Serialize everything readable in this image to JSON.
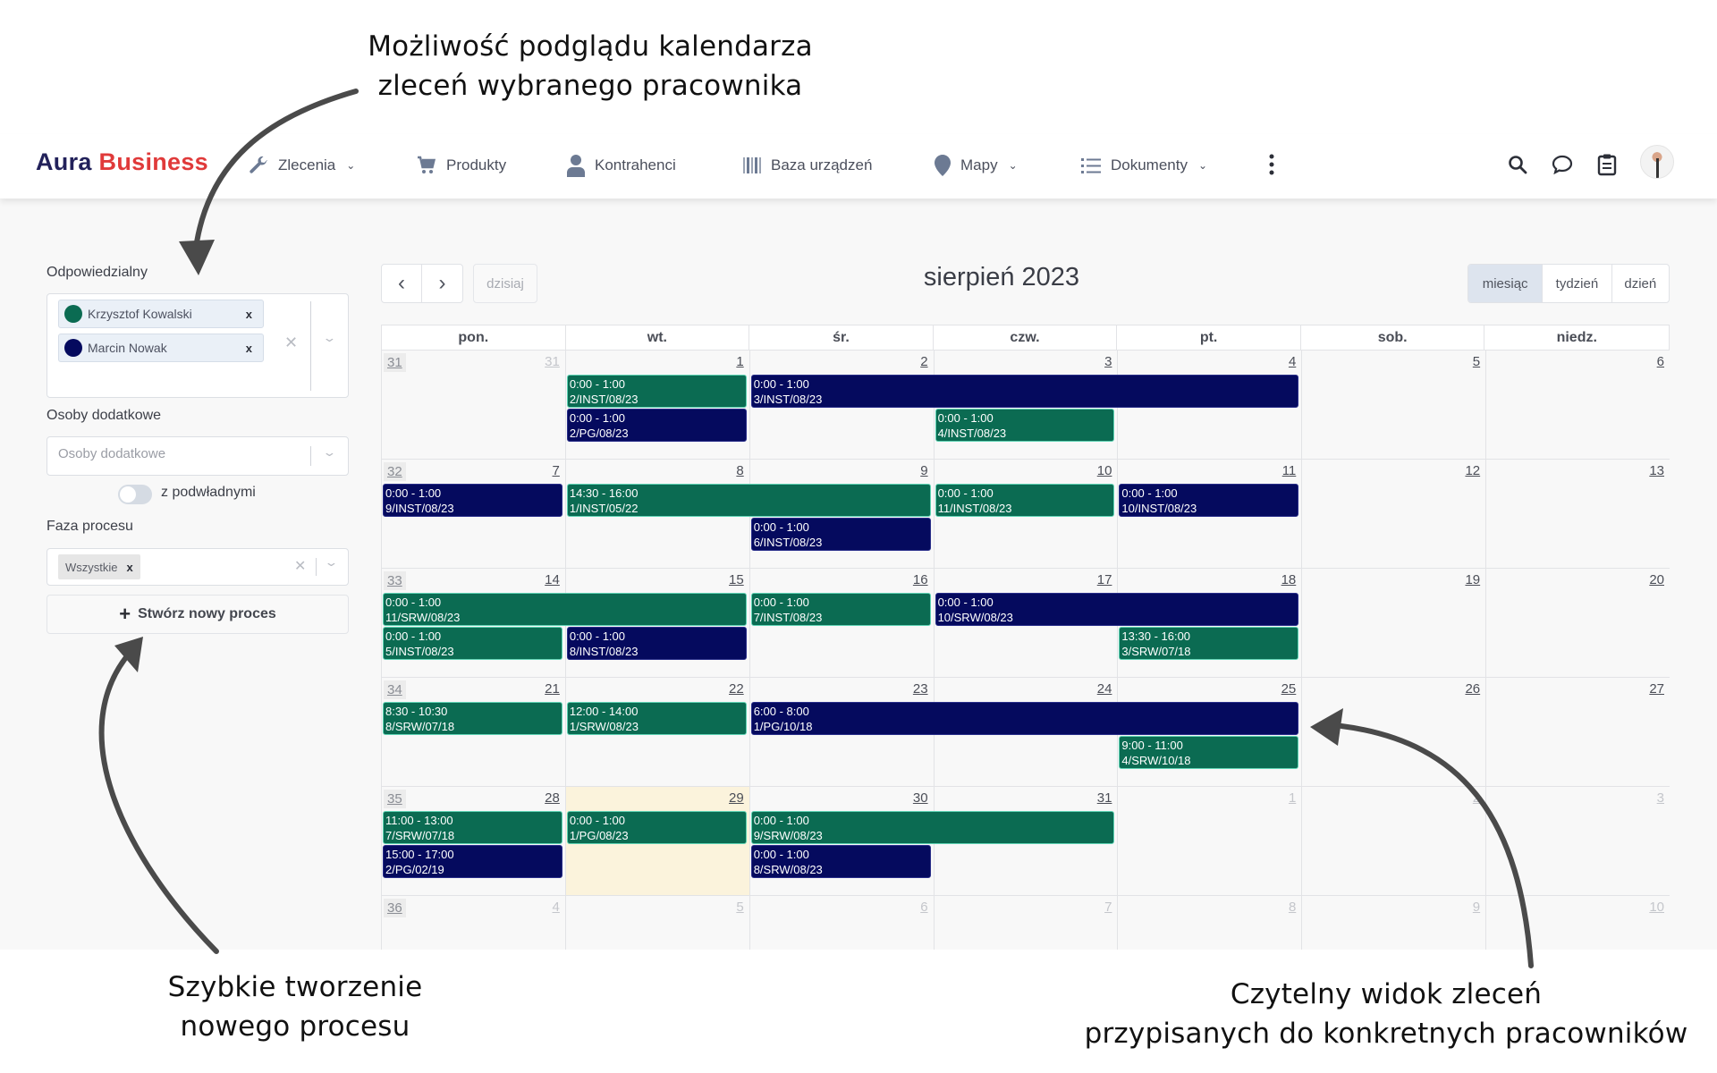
{
  "annotations": {
    "top": [
      "Możliwość podglądu kalendarza",
      "zleceń wybranego pracownika"
    ],
    "bottom_left": [
      "Szybkie tworzenie",
      "nowego procesu"
    ],
    "bottom_right": [
      "Czytelny widok zleceń",
      "przypisanych do konkretnych pracowników"
    ]
  },
  "navbar": {
    "logo_part1": "Aura",
    "logo_part2": "Business",
    "items": [
      {
        "label": "Zlecenia",
        "icon": "wrench-icon",
        "dropdown": true
      },
      {
        "label": "Produkty",
        "icon": "cart-icon",
        "dropdown": false
      },
      {
        "label": "Kontrahenci",
        "icon": "user-icon",
        "dropdown": false
      },
      {
        "label": "Baza urządzeń",
        "icon": "barcode-icon",
        "dropdown": false
      },
      {
        "label": "Mapy",
        "icon": "map-pin-icon",
        "dropdown": true
      },
      {
        "label": "Dokumenty",
        "icon": "list-icon",
        "dropdown": true
      }
    ],
    "more_icon": "more-vertical-icon",
    "right_icons": [
      "search-icon",
      "chat-icon",
      "clipboard-icon",
      "avatar"
    ],
    "chevron": "⌄"
  },
  "sidebar": {
    "responsible": {
      "label": "Odpowiedzialny",
      "selected": [
        {
          "name": "Krzysztof Kowalski",
          "color": "#0b6b52"
        },
        {
          "name": "Marcin Nowak",
          "color": "#050a5e"
        }
      ],
      "remove": "x",
      "clear": "✕",
      "chevron": "⌄"
    },
    "additional": {
      "label": "Osoby dodatkowe",
      "placeholder": "Osoby dodatkowe",
      "chevron": "⌄"
    },
    "subordinates_toggle": {
      "label": "z podwładnymi",
      "on": false
    },
    "phase": {
      "label": "Faza procesu",
      "selected": "Wszystkie",
      "remove": "x",
      "clear": "✕",
      "chevron": "⌄"
    },
    "create_button": {
      "icon": "+",
      "label": "Stwórz nowy proces"
    }
  },
  "calendar": {
    "title": "sierpień 2023",
    "prev": "‹",
    "next": "›",
    "today_label": "dzisiaj",
    "views": [
      {
        "label": "miesiąc",
        "active": true
      },
      {
        "label": "tydzień",
        "active": false
      },
      {
        "label": "dzień",
        "active": false
      }
    ],
    "weekdays": [
      "pon.",
      "wt.",
      "śr.",
      "czw.",
      "pt.",
      "sob.",
      "niedz."
    ],
    "colors": {
      "green": "#0b6b52",
      "navy": "#050a5e",
      "today_bg": "#fbf3dc"
    },
    "weeks": [
      {
        "week": "31",
        "days": [
          {
            "d": "31",
            "other": true
          },
          {
            "d": "1"
          },
          {
            "d": "2"
          },
          {
            "d": "3"
          },
          {
            "d": "4"
          },
          {
            "d": "5"
          },
          {
            "d": "6"
          }
        ]
      },
      {
        "week": "32",
        "days": [
          {
            "d": "7"
          },
          {
            "d": "8"
          },
          {
            "d": "9"
          },
          {
            "d": "10"
          },
          {
            "d": "11"
          },
          {
            "d": "12"
          },
          {
            "d": "13"
          }
        ]
      },
      {
        "week": "33",
        "days": [
          {
            "d": "14"
          },
          {
            "d": "15"
          },
          {
            "d": "16"
          },
          {
            "d": "17"
          },
          {
            "d": "18"
          },
          {
            "d": "19"
          },
          {
            "d": "20"
          }
        ]
      },
      {
        "week": "34",
        "days": [
          {
            "d": "21"
          },
          {
            "d": "22"
          },
          {
            "d": "23"
          },
          {
            "d": "24"
          },
          {
            "d": "25"
          },
          {
            "d": "26"
          },
          {
            "d": "27"
          }
        ]
      },
      {
        "week": "35",
        "days": [
          {
            "d": "28"
          },
          {
            "d": "29",
            "today": true
          },
          {
            "d": "30"
          },
          {
            "d": "31"
          },
          {
            "d": "1",
            "other": true
          },
          {
            "d": "2",
            "other": true
          },
          {
            "d": "3",
            "other": true
          }
        ]
      },
      {
        "week": "36",
        "days": [
          {
            "d": "4",
            "other": true
          },
          {
            "d": "5",
            "other": true
          },
          {
            "d": "6",
            "other": true
          },
          {
            "d": "7",
            "other": true
          },
          {
            "d": "8",
            "other": true
          },
          {
            "d": "9",
            "other": true
          },
          {
            "d": "10",
            "other": true
          }
        ]
      }
    ],
    "events": [
      {
        "week": 0,
        "start": 1,
        "span": 1,
        "lane": 0,
        "color": "green",
        "time": "0:00 - 1:00",
        "code": "2/INST/08/23"
      },
      {
        "week": 0,
        "start": 1,
        "span": 1,
        "lane": 1,
        "color": "navy",
        "time": "0:00 - 1:00",
        "code": "2/PG/08/23"
      },
      {
        "week": 0,
        "start": 2,
        "span": 3,
        "lane": 0,
        "color": "navy",
        "time": "0:00 - 1:00",
        "code": "3/INST/08/23"
      },
      {
        "week": 0,
        "start": 3,
        "span": 1,
        "lane": 1,
        "color": "green",
        "time": "0:00 - 1:00",
        "code": "4/INST/08/23"
      },
      {
        "week": 1,
        "start": 0,
        "span": 1,
        "lane": 0,
        "color": "navy",
        "time": "0:00 - 1:00",
        "code": "9/INST/08/23"
      },
      {
        "week": 1,
        "start": 1,
        "span": 2,
        "lane": 0,
        "color": "green",
        "time": "14:30 - 16:00",
        "code": "1/INST/05/22"
      },
      {
        "week": 1,
        "start": 2,
        "span": 1,
        "lane": 1,
        "color": "navy",
        "time": "0:00 - 1:00",
        "code": "6/INST/08/23"
      },
      {
        "week": 1,
        "start": 3,
        "span": 1,
        "lane": 0,
        "color": "green",
        "time": "0:00 - 1:00",
        "code": "11/INST/08/23"
      },
      {
        "week": 1,
        "start": 4,
        "span": 1,
        "lane": 0,
        "color": "navy",
        "time": "0:00 - 1:00",
        "code": "10/INST/08/23"
      },
      {
        "week": 2,
        "start": 0,
        "span": 2,
        "lane": 0,
        "color": "green",
        "time": "0:00 - 1:00",
        "code": "11/SRW/08/23"
      },
      {
        "week": 2,
        "start": 0,
        "span": 1,
        "lane": 1,
        "color": "green",
        "time": "0:00 - 1:00",
        "code": "5/INST/08/23"
      },
      {
        "week": 2,
        "start": 1,
        "span": 1,
        "lane": 1,
        "color": "navy",
        "time": "0:00 - 1:00",
        "code": "8/INST/08/23"
      },
      {
        "week": 2,
        "start": 2,
        "span": 1,
        "lane": 0,
        "color": "green",
        "time": "0:00 - 1:00",
        "code": "7/INST/08/23"
      },
      {
        "week": 2,
        "start": 3,
        "span": 2,
        "lane": 0,
        "color": "navy",
        "time": "0:00 - 1:00",
        "code": "10/SRW/08/23"
      },
      {
        "week": 2,
        "start": 4,
        "span": 1,
        "lane": 1,
        "color": "green",
        "time": "13:30 - 16:00",
        "code": "3/SRW/07/18"
      },
      {
        "week": 3,
        "start": 0,
        "span": 1,
        "lane": 0,
        "color": "green",
        "time": "8:30 - 10:30",
        "code": "8/SRW/07/18"
      },
      {
        "week": 3,
        "start": 1,
        "span": 1,
        "lane": 0,
        "color": "green",
        "time": "12:00 - 14:00",
        "code": "1/SRW/08/23"
      },
      {
        "week": 3,
        "start": 2,
        "span": 3,
        "lane": 0,
        "color": "navy",
        "time": "6:00 - 8:00",
        "code": "1/PG/10/18"
      },
      {
        "week": 3,
        "start": 4,
        "span": 1,
        "lane": 1,
        "color": "green",
        "time": "9:00 - 11:00",
        "code": "4/SRW/10/18"
      },
      {
        "week": 4,
        "start": 0,
        "span": 1,
        "lane": 0,
        "color": "green",
        "time": "11:00 - 13:00",
        "code": "7/SRW/07/18"
      },
      {
        "week": 4,
        "start": 0,
        "span": 1,
        "lane": 1,
        "color": "navy",
        "time": "15:00 - 17:00",
        "code": "2/PG/02/19"
      },
      {
        "week": 4,
        "start": 1,
        "span": 1,
        "lane": 0,
        "color": "green",
        "time": "0:00 - 1:00",
        "code": "1/PG/08/23"
      },
      {
        "week": 4,
        "start": 2,
        "span": 2,
        "lane": 0,
        "color": "green",
        "time": "0:00 - 1:00",
        "code": "9/SRW/08/23"
      },
      {
        "week": 4,
        "start": 2,
        "span": 1,
        "lane": 1,
        "color": "navy",
        "time": "0:00 - 1:00",
        "code": "8/SRW/08/23"
      }
    ]
  }
}
